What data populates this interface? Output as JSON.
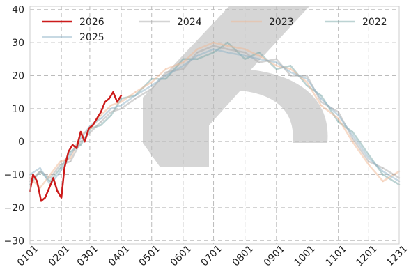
{
  "chart_data": {
    "type": "line",
    "title": "",
    "xlabel": "",
    "ylabel": "",
    "ylim": [
      -31,
      41
    ],
    "y_ticks": [
      -30,
      -20,
      -10,
      0,
      10,
      20,
      30,
      40
    ],
    "y_tick_labels": [
      "−30",
      "−20",
      "−10",
      "0",
      "10",
      "20",
      "30",
      "40"
    ],
    "x_day_range": [
      0,
      364
    ],
    "x_ticks": [
      {
        "label": "0101",
        "day": 0
      },
      {
        "label": "0201",
        "day": 31
      },
      {
        "label": "0301",
        "day": 59
      },
      {
        "label": "0401",
        "day": 90
      },
      {
        "label": "0501",
        "day": 120
      },
      {
        "label": "0601",
        "day": 151
      },
      {
        "label": "0701",
        "day": 181
      },
      {
        "label": "0801",
        "day": 212
      },
      {
        "label": "0901",
        "day": 243
      },
      {
        "label": "1001",
        "day": 273
      },
      {
        "label": "1101",
        "day": 304
      },
      {
        "label": "1201",
        "day": 334
      },
      {
        "label": "1231",
        "day": 364
      }
    ],
    "grid": true,
    "legend_position": "top",
    "series": [
      {
        "name": "2026",
        "color": "#cc1b1b",
        "opacity": 1.0,
        "x": [
          "01-01",
          "01-04",
          "01-08",
          "01-12",
          "01-16",
          "01-20",
          "01-24",
          "01-28",
          "02-01",
          "02-04",
          "02-08",
          "02-12",
          "02-16",
          "02-20",
          "02-24",
          "02-28",
          "03-04",
          "03-08",
          "03-12",
          "03-16",
          "03-20",
          "03-24",
          "03-28",
          "04-01"
        ],
        "y": [
          -15,
          -10,
          -12,
          -18,
          -17,
          -14,
          -11,
          -15,
          -17,
          -8,
          -3,
          -1,
          -2,
          3,
          0,
          4,
          5,
          7,
          9,
          12,
          13,
          15,
          12,
          14
        ]
      },
      {
        "name": "2025",
        "color": "#8fb3c8",
        "opacity": 0.5,
        "x": [
          "01-01",
          "01-11",
          "01-21",
          "01-31",
          "02-10",
          "02-20",
          "03-02",
          "03-12",
          "03-22",
          "04-01",
          "04-15",
          "05-01",
          "05-15",
          "06-01",
          "06-15",
          "07-01",
          "07-15",
          "08-01",
          "08-15",
          "09-01",
          "09-15",
          "10-01",
          "10-15",
          "11-01",
          "11-15",
          "12-01",
          "12-15",
          "12-31"
        ],
        "y": [
          -10,
          -8,
          -13,
          -9,
          -4,
          1,
          5,
          7,
          10,
          11,
          14,
          17,
          20,
          23,
          26,
          28,
          27,
          26,
          25,
          24,
          21,
          19,
          13,
          8,
          2,
          -5,
          -9,
          -12
        ]
      },
      {
        "name": "2024",
        "color": "#aaaaaa",
        "opacity": 0.5,
        "x": [
          "01-01",
          "01-11",
          "01-21",
          "01-31",
          "02-10",
          "02-20",
          "03-02",
          "03-12",
          "03-22",
          "04-01",
          "04-15",
          "05-01",
          "05-15",
          "06-01",
          "06-15",
          "07-01",
          "07-15",
          "08-01",
          "08-15",
          "09-01",
          "09-15",
          "10-01",
          "10-15",
          "11-01",
          "11-15",
          "12-01",
          "12-15",
          "12-31"
        ],
        "y": [
          -12,
          -9,
          -11,
          -7,
          -6,
          0,
          3,
          6,
          9,
          10,
          13,
          16,
          21,
          22,
          27,
          29,
          28,
          27,
          24,
          25,
          20,
          20,
          12,
          9,
          1,
          -6,
          -8,
          -11
        ]
      },
      {
        "name": "2023",
        "color": "#f0b893",
        "opacity": 0.5,
        "x": [
          "01-01",
          "01-11",
          "01-21",
          "01-31",
          "02-10",
          "02-20",
          "03-02",
          "03-12",
          "03-22",
          "04-01",
          "04-15",
          "05-01",
          "05-15",
          "06-01",
          "06-15",
          "07-01",
          "07-15",
          "08-01",
          "08-15",
          "09-01",
          "09-15",
          "10-01",
          "10-15",
          "11-01",
          "11-15",
          "12-01",
          "12-15",
          "12-31"
        ],
        "y": [
          -11,
          -14,
          -10,
          -6,
          -5,
          2,
          4,
          8,
          11,
          12,
          15,
          18,
          22,
          24,
          28,
          30,
          29,
          28,
          26,
          23,
          22,
          18,
          11,
          7,
          0,
          -7,
          -12,
          -9
        ]
      },
      {
        "name": "2022",
        "color": "#7aa7a7",
        "opacity": 0.5,
        "x": [
          "01-01",
          "01-11",
          "01-21",
          "01-31",
          "02-10",
          "02-20",
          "03-02",
          "03-12",
          "03-22",
          "04-01",
          "04-15",
          "05-01",
          "05-15",
          "06-01",
          "06-15",
          "07-01",
          "07-15",
          "08-01",
          "08-15",
          "09-01",
          "09-15",
          "10-01",
          "10-15",
          "11-01",
          "11-15",
          "12-01",
          "12-15",
          "12-31"
        ],
        "y": [
          -13,
          -9,
          -12,
          -8,
          -3,
          -1,
          4,
          5,
          8,
          13,
          14,
          19,
          19,
          25,
          25,
          27,
          30,
          25,
          27,
          22,
          23,
          17,
          14,
          6,
          3,
          -4,
          -10,
          -13
        ]
      }
    ],
    "legend": [
      {
        "name": "2026",
        "color": "#cc1b1b",
        "opacity": 1.0,
        "row": 0,
        "col": 0
      },
      {
        "name": "2024",
        "color": "#aaaaaa",
        "opacity": 0.5,
        "row": 0,
        "col": 1
      },
      {
        "name": "2023",
        "color": "#f0b893",
        "opacity": 0.5,
        "row": 0,
        "col": 2
      },
      {
        "name": "2022",
        "color": "#7aa7a7",
        "opacity": 0.5,
        "row": 0,
        "col": 3
      },
      {
        "name": "2025",
        "color": "#8fb3c8",
        "opacity": 0.5,
        "row": 1,
        "col": 0
      }
    ]
  }
}
